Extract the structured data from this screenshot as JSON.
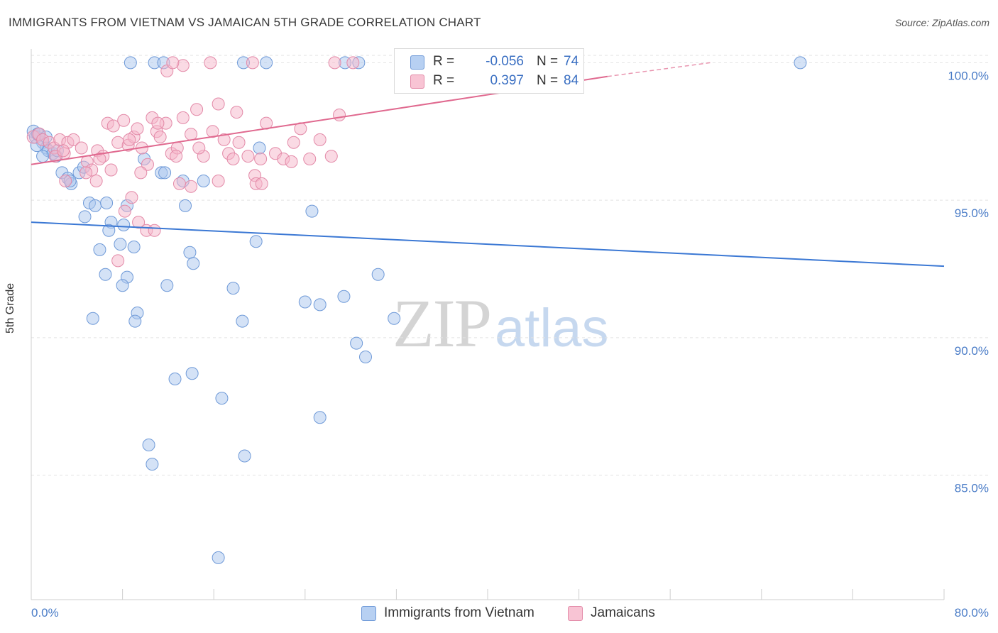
{
  "title": "IMMIGRANTS FROM VIETNAM VS JAMAICAN 5TH GRADE CORRELATION CHART",
  "source": "Source: ZipAtlas.com",
  "watermark": {
    "zip": "ZIP",
    "atlas": "atlas"
  },
  "colors": {
    "blue": "#3b78d4",
    "blue_fill": "#a9c6ee",
    "pink": "#e0698f",
    "pink_fill": "#f5b6ca",
    "tick": "#4a7cc7",
    "grid": "#e2e2e2"
  },
  "legend": {
    "r_label": "R =",
    "n_label": "N =",
    "rows": [
      {
        "r": "-0.056",
        "n": "74"
      },
      {
        "r": "0.397",
        "n": "84"
      }
    ]
  },
  "bottom_legend": [
    "Immigrants from Vietnam",
    "Jamaicans"
  ],
  "chart_data": {
    "type": "scatter",
    "title": "IMMIGRANTS FROM VIETNAM VS JAMAICAN 5TH GRADE CORRELATION CHART",
    "xlabel": "",
    "ylabel": "5th Grade",
    "xlim": [
      0,
      80
    ],
    "ylim": [
      80.5,
      100.5
    ],
    "x_tick_labels": [
      "0.0%",
      "80.0%"
    ],
    "y_ticks": [
      85,
      90,
      95,
      100
    ],
    "y_tick_labels": [
      "85.0%",
      "90.0%",
      "95.0%",
      "100.0%"
    ],
    "grid": "horizontal dashed",
    "legend_position": "top-center",
    "series": [
      {
        "name": "Immigrants from Vietnam",
        "color": "#3b78d4",
        "trend": {
          "x": [
            0,
            80
          ],
          "y": [
            94.2,
            92.6
          ],
          "solid_until": 80
        },
        "points": [
          [
            0.2,
            97.5
          ],
          [
            0.4,
            97.3
          ],
          [
            0.6,
            97.4
          ],
          [
            1,
            97.1
          ],
          [
            1.3,
            96.9
          ],
          [
            1.5,
            96.8
          ],
          [
            1.9,
            96.7
          ],
          [
            2.2,
            96.6
          ],
          [
            2.7,
            96.0
          ],
          [
            3.2,
            95.8
          ],
          [
            3.5,
            95.6
          ],
          [
            4.2,
            96.0
          ],
          [
            4.6,
            96.2
          ],
          [
            4.7,
            94.4
          ],
          [
            5.1,
            94.9
          ],
          [
            5.6,
            94.8
          ],
          [
            6.6,
            94.9
          ],
          [
            7.0,
            94.2
          ],
          [
            6.8,
            93.9
          ],
          [
            8.1,
            94.1
          ],
          [
            8.4,
            94.8
          ],
          [
            7.8,
            93.4
          ],
          [
            6.0,
            93.2
          ],
          [
            9.0,
            93.3
          ],
          [
            6.5,
            92.3
          ],
          [
            8.4,
            92.2
          ],
          [
            8.0,
            91.9
          ],
          [
            11.9,
            91.9
          ],
          [
            9.3,
            90.9
          ],
          [
            9.9,
            96.5
          ],
          [
            11.4,
            96.0
          ],
          [
            11.7,
            96.0
          ],
          [
            13.3,
            95.7
          ],
          [
            15.1,
            95.7
          ],
          [
            13.5,
            94.8
          ],
          [
            13.9,
            93.1
          ],
          [
            14.2,
            92.7
          ],
          [
            17.7,
            91.8
          ],
          [
            19.7,
            93.5
          ],
          [
            18.5,
            90.6
          ],
          [
            20.0,
            96.9
          ],
          [
            24.0,
            91.3
          ],
          [
            24.6,
            94.6
          ],
          [
            25.3,
            91.2
          ],
          [
            27.4,
            91.5
          ],
          [
            28.5,
            89.8
          ],
          [
            29.3,
            89.3
          ],
          [
            30.4,
            92.3
          ],
          [
            31.8,
            90.7
          ],
          [
            5.4,
            90.7
          ],
          [
            9.1,
            90.6
          ],
          [
            12.6,
            88.5
          ],
          [
            14.1,
            88.7
          ],
          [
            16.7,
            87.8
          ],
          [
            25.3,
            87.1
          ],
          [
            10.3,
            86.1
          ],
          [
            10.6,
            85.4
          ],
          [
            18.7,
            85.7
          ],
          [
            16.4,
            82.0
          ],
          [
            8.7,
            100.0
          ],
          [
            10.8,
            100.0
          ],
          [
            11.6,
            100.0
          ],
          [
            18.6,
            100.0
          ],
          [
            20.6,
            100.0
          ],
          [
            27.5,
            100.0
          ],
          [
            28.7,
            100.0
          ],
          [
            42.2,
            100.0
          ],
          [
            67.4,
            100.0
          ],
          [
            0.5,
            97.0
          ],
          [
            1.0,
            96.6
          ],
          [
            3.4,
            95.7
          ],
          [
            0.6,
            97.4
          ],
          [
            1.3,
            97.3
          ],
          [
            2.3,
            96.8
          ]
        ]
      },
      {
        "name": "Jamaicans",
        "color": "#e0698f",
        "trend": {
          "x": [
            0,
            50.5
          ],
          "y": [
            96.3,
            99.5
          ],
          "dashed_to": [
            59.5,
            100.0
          ]
        },
        "points": [
          [
            0.2,
            97.3
          ],
          [
            0.7,
            97.4
          ],
          [
            1.0,
            97.2
          ],
          [
            1.6,
            97.1
          ],
          [
            2.0,
            96.9
          ],
          [
            2.5,
            97.2
          ],
          [
            2.9,
            96.7
          ],
          [
            3.2,
            97.1
          ],
          [
            3.7,
            97.2
          ],
          [
            4.4,
            96.9
          ],
          [
            4.9,
            96.4
          ],
          [
            5.3,
            96.1
          ],
          [
            5.8,
            96.8
          ],
          [
            6.3,
            96.6
          ],
          [
            6.7,
            97.8
          ],
          [
            7.2,
            97.7
          ],
          [
            7.6,
            97.1
          ],
          [
            8.1,
            97.9
          ],
          [
            8.5,
            97.0
          ],
          [
            9.0,
            97.3
          ],
          [
            9.3,
            97.6
          ],
          [
            9.7,
            96.9
          ],
          [
            10.2,
            96.3
          ],
          [
            10.6,
            98.0
          ],
          [
            11.0,
            97.5
          ],
          [
            11.3,
            97.3
          ],
          [
            11.8,
            97.8
          ],
          [
            12.3,
            96.7
          ],
          [
            12.8,
            96.9
          ],
          [
            13.3,
            98.0
          ],
          [
            14.0,
            97.4
          ],
          [
            14.5,
            98.3
          ],
          [
            15.1,
            96.6
          ],
          [
            15.9,
            97.5
          ],
          [
            16.4,
            98.5
          ],
          [
            17.3,
            96.7
          ],
          [
            17.7,
            96.5
          ],
          [
            18.2,
            97.1
          ],
          [
            19.0,
            96.6
          ],
          [
            19.6,
            95.9
          ],
          [
            20.1,
            96.5
          ],
          [
            20.6,
            97.8
          ],
          [
            21.4,
            96.7
          ],
          [
            22.1,
            96.5
          ],
          [
            23.0,
            97.1
          ],
          [
            23.6,
            97.6
          ],
          [
            24.4,
            96.5
          ],
          [
            25.3,
            97.2
          ],
          [
            26.3,
            96.6
          ],
          [
            27.0,
            98.1
          ],
          [
            5.7,
            95.7
          ],
          [
            7.0,
            96.1
          ],
          [
            8.2,
            94.6
          ],
          [
            8.8,
            95.1
          ],
          [
            9.4,
            94.2
          ],
          [
            10.1,
            93.9
          ],
          [
            10.8,
            93.9
          ],
          [
            7.6,
            92.8
          ],
          [
            13.0,
            95.6
          ],
          [
            14.0,
            95.5
          ],
          [
            16.4,
            95.7
          ],
          [
            19.7,
            95.6
          ],
          [
            20.2,
            95.6
          ],
          [
            3.0,
            95.7
          ],
          [
            2.1,
            96.6
          ],
          [
            2.8,
            96.8
          ],
          [
            4.8,
            96.0
          ],
          [
            6.0,
            96.5
          ],
          [
            11.9,
            99.7
          ],
          [
            13.3,
            99.9
          ],
          [
            15.7,
            100.0
          ],
          [
            19.4,
            100.0
          ],
          [
            26.6,
            100.0
          ],
          [
            28.2,
            100.0
          ],
          [
            38.2,
            100.0
          ],
          [
            12.4,
            100.0
          ],
          [
            8.6,
            97.2
          ],
          [
            9.6,
            96.0
          ],
          [
            11.1,
            97.8
          ],
          [
            12.7,
            96.6
          ],
          [
            14.7,
            96.9
          ],
          [
            16.9,
            97.2
          ],
          [
            18.0,
            98.2
          ],
          [
            22.8,
            96.4
          ]
        ]
      }
    ]
  }
}
